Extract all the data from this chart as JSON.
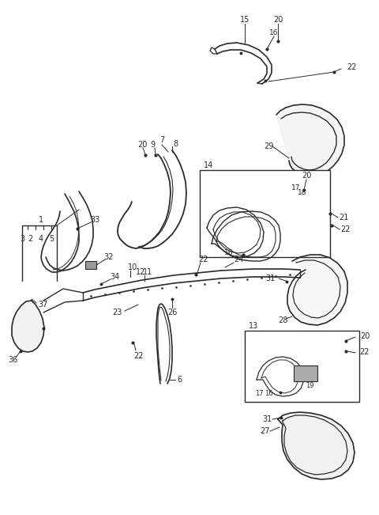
{
  "bg_color": "#ffffff",
  "line_color": "#2a2a2a",
  "fig_width": 4.8,
  "fig_height": 6.51,
  "dpi": 100
}
